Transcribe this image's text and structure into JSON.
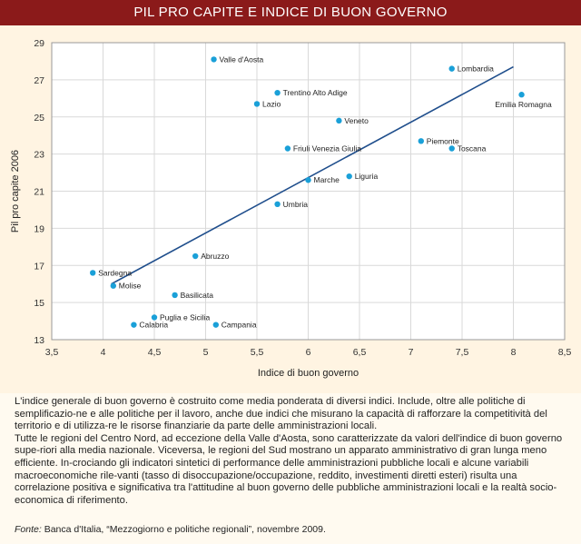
{
  "title": "PIL PRO CAPITE E INDICE DI BUON GOVERNO",
  "chart_data": {
    "type": "scatter",
    "xlabel": "Indice di buon governo",
    "ylabel": "Pil pro capite 2006",
    "xlim": [
      3.5,
      8.5
    ],
    "ylim": [
      13,
      29
    ],
    "xticks": [
      "3,5",
      "4",
      "4,5",
      "5",
      "5,5",
      "6",
      "6,5",
      "7",
      "7,5",
      "8",
      "8,5"
    ],
    "yticks": [
      "13",
      "15",
      "17",
      "19",
      "21",
      "23",
      "25",
      "27",
      "29"
    ],
    "grid": true,
    "points": [
      {
        "label": "Valle d'Aosta",
        "x": 5.08,
        "y": 28.1
      },
      {
        "label": "Lombardia",
        "x": 7.4,
        "y": 27.6
      },
      {
        "label": "Emilia Romagna",
        "x": 8.08,
        "y": 26.2
      },
      {
        "label": "Trentino Alto Adige",
        "x": 5.7,
        "y": 26.3
      },
      {
        "label": "Lazio",
        "x": 5.5,
        "y": 25.7
      },
      {
        "label": "Veneto",
        "x": 6.3,
        "y": 24.8
      },
      {
        "label": "Piemonte",
        "x": 7.1,
        "y": 23.7
      },
      {
        "label": "Toscana",
        "x": 7.4,
        "y": 23.3
      },
      {
        "label": "Friuli Venezia Giulia",
        "x": 5.8,
        "y": 23.3
      },
      {
        "label": "Liguria",
        "x": 6.4,
        "y": 21.8
      },
      {
        "label": "Marche",
        "x": 6.0,
        "y": 21.6
      },
      {
        "label": "Umbria",
        "x": 5.7,
        "y": 20.3
      },
      {
        "label": "Abruzzo",
        "x": 4.9,
        "y": 17.5
      },
      {
        "label": "Sardegna",
        "x": 3.9,
        "y": 16.6
      },
      {
        "label": "Molise",
        "x": 4.1,
        "y": 15.9
      },
      {
        "label": "Basilicata",
        "x": 4.7,
        "y": 15.4
      },
      {
        "label": "Puglia e Sicilia",
        "x": 4.5,
        "y": 14.2
      },
      {
        "label": "Calabria",
        "x": 4.3,
        "y": 13.8
      },
      {
        "label": "Campania",
        "x": 5.1,
        "y": 13.8
      }
    ],
    "trendline": {
      "x1": 4.08,
      "y1": 16.0,
      "x2": 8.0,
      "y2": 27.7
    },
    "colors": {
      "point": "#1aa0d8",
      "trend": "#1f4e8c",
      "grid": "#d9d9d9",
      "plot_bg": "#ffffff"
    }
  },
  "notes": [
    "L'indice generale di buon governo è costruito come media ponderata di diversi indici. Include, oltre alle politiche di semplificazio-ne e alle politiche per il lavoro, anche due indici che misurano la capacità di rafforzare la competitività del territorio e di utilizza-re le risorse finanziarie da parte delle amministrazioni locali.",
    "Tutte le regioni del Centro Nord, ad eccezione della Valle d'Aosta, sono caratterizzate da valori dell'indice di buon governo supe-riori alla media nazionale. Viceversa, le regioni del Sud mostrano un apparato amministrativo di gran lunga meno efficiente. In-crociando gli indicatori sintetici di performance delle amministrazioni pubbliche locali e alcune variabili macroeconomiche rile-vanti (tasso di disoccupazione/occupazione, reddito, investimenti diretti esteri) risulta una correlazione positiva e significativa tra l'attitudine al buon governo delle pubbliche amministrazioni locali e la realtà socio-economica di riferimento."
  ],
  "source": {
    "label": "Fonte:",
    "text": " Banca d'Italia, “Mezzogiorno e politiche regionali”, novembre 2009."
  }
}
